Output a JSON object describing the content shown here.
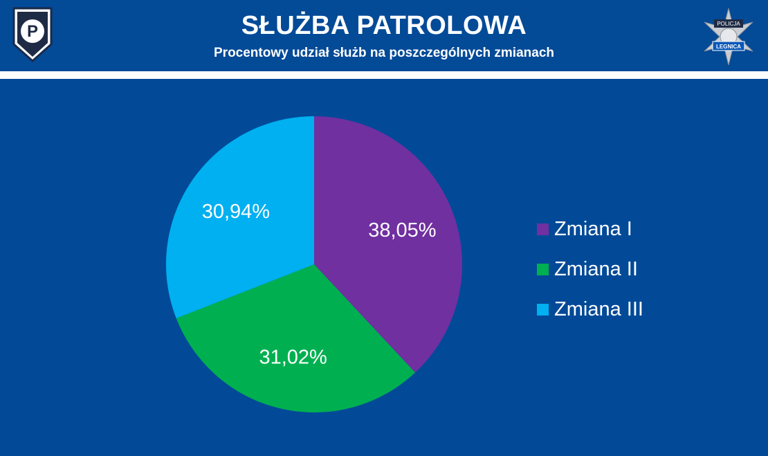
{
  "header": {
    "title": "SŁUŻBA PATROLOWA",
    "subtitle": "Procentowy udział służb na poszczególnych zmianach",
    "left_logo_letter": "P",
    "right_logo_text_top": "POLICJA",
    "right_logo_text_bottom": "LEGNICA"
  },
  "colors": {
    "background": "#024a98",
    "zmiana_1": "#7030a0",
    "zmiana_2": "#00b050",
    "zmiana_3": "#00b0f0"
  },
  "chart_data": {
    "type": "pie",
    "title": "",
    "categories": [
      "Zmiana I",
      "Zmiana II",
      "Zmiana III"
    ],
    "values": [
      38.05,
      31.02,
      30.94
    ],
    "data_labels": [
      "38,05%",
      "31,02%",
      "30,94%"
    ],
    "colors": [
      "#7030a0",
      "#00b050",
      "#00b0f0"
    ],
    "start_angle": "12 o'clock",
    "direction": "clockwise",
    "legend_position": "right"
  }
}
